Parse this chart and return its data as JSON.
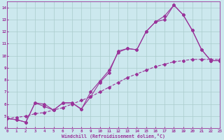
{
  "xlabel": "Windchill (Refroidissement éolien,°C)",
  "bg_color": "#cce8ee",
  "grid_color": "#aacccc",
  "line_color": "#993399",
  "xlim": [
    0,
    23
  ],
  "ylim": [
    4,
    14.5
  ],
  "xticks": [
    0,
    1,
    2,
    3,
    4,
    5,
    6,
    7,
    8,
    9,
    10,
    11,
    12,
    13,
    14,
    15,
    16,
    17,
    18,
    19,
    20,
    21,
    22,
    23
  ],
  "yticks": [
    4,
    5,
    6,
    7,
    8,
    9,
    10,
    11,
    12,
    13,
    14
  ],
  "s1_x": [
    0,
    1,
    2,
    3,
    4,
    5,
    6,
    7,
    8,
    9,
    10,
    11,
    12,
    13,
    14,
    15,
    16,
    17,
    18,
    19,
    20,
    21,
    22,
    23
  ],
  "s1_y": [
    4.8,
    4.7,
    4.5,
    6.1,
    6.0,
    5.5,
    6.1,
    6.1,
    5.6,
    6.6,
    7.8,
    8.6,
    10.4,
    10.6,
    10.5,
    12.0,
    12.8,
    13.0,
    14.2,
    13.4,
    12.1,
    10.5,
    9.6,
    9.6
  ],
  "s2_x": [
    0,
    1,
    2,
    3,
    4,
    5,
    6,
    7,
    8,
    9,
    10,
    11,
    12,
    13,
    14,
    15,
    16,
    17,
    18,
    19,
    20,
    21,
    22,
    23
  ],
  "s2_y": [
    4.8,
    4.7,
    4.5,
    6.1,
    5.8,
    5.5,
    6.1,
    6.1,
    5.55,
    7.0,
    7.9,
    8.8,
    10.3,
    10.6,
    10.5,
    12.0,
    12.8,
    13.3,
    14.2,
    13.4,
    12.1,
    10.5,
    9.6,
    9.6
  ],
  "s3_x": [
    0,
    1,
    2,
    3,
    4,
    5,
    6,
    7,
    8,
    9,
    10,
    11,
    12,
    13,
    14,
    15,
    16,
    17,
    18,
    19,
    20,
    21,
    22,
    23
  ],
  "s3_y": [
    4.8,
    4.9,
    5.0,
    5.2,
    5.3,
    5.5,
    5.7,
    6.0,
    6.3,
    6.6,
    7.0,
    7.4,
    7.8,
    8.2,
    8.5,
    8.8,
    9.1,
    9.3,
    9.5,
    9.6,
    9.7,
    9.7,
    9.7,
    9.7
  ],
  "marker": "D",
  "markersize": 2.0,
  "linewidth": 0.8
}
